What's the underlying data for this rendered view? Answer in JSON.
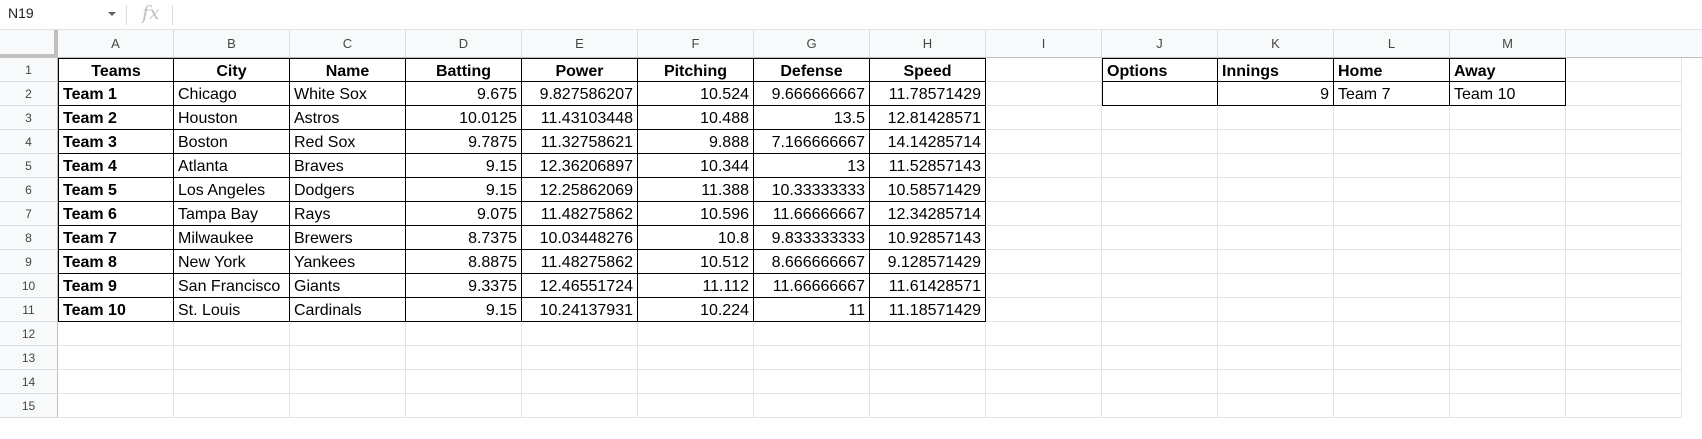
{
  "formula_bar": {
    "name_box": "N19",
    "fx_label": "fx",
    "formula": ""
  },
  "columns": [
    "A",
    "B",
    "C",
    "D",
    "E",
    "F",
    "G",
    "H",
    "I",
    "J",
    "K",
    "L",
    "M"
  ],
  "rows": [
    "1",
    "2",
    "3",
    "4",
    "5",
    "6",
    "7",
    "8",
    "9",
    "10",
    "11",
    "12",
    "13",
    "14",
    "15"
  ],
  "teams_table": {
    "headers": [
      "Teams",
      "City",
      "Name",
      "Batting",
      "Power",
      "Pitching",
      "Defense",
      "Speed"
    ],
    "data": [
      [
        "Team 1",
        "Chicago",
        "White Sox",
        "9.675",
        "9.827586207",
        "10.524",
        "9.666666667",
        "11.78571429"
      ],
      [
        "Team 2",
        "Houston",
        "Astros",
        "10.0125",
        "11.43103448",
        "10.488",
        "13.5",
        "12.81428571"
      ],
      [
        "Team 3",
        "Boston",
        "Red Sox",
        "9.7875",
        "11.32758621",
        "9.888",
        "7.166666667",
        "14.14285714"
      ],
      [
        "Team 4",
        "Atlanta",
        "Braves",
        "9.15",
        "12.36206897",
        "10.344",
        "13",
        "11.52857143"
      ],
      [
        "Team 5",
        "Los Angeles",
        "Dodgers",
        "9.15",
        "12.25862069",
        "11.388",
        "10.33333333",
        "10.58571429"
      ],
      [
        "Team 6",
        "Tampa Bay",
        "Rays",
        "9.075",
        "11.48275862",
        "10.596",
        "11.66666667",
        "12.34285714"
      ],
      [
        "Team 7",
        "Milwaukee",
        "Brewers",
        "8.7375",
        "10.03448276",
        "10.8",
        "9.833333333",
        "10.92857143"
      ],
      [
        "Team 8",
        "New York",
        "Yankees",
        "8.8875",
        "11.48275862",
        "10.512",
        "8.666666667",
        "9.128571429"
      ],
      [
        "Team 9",
        "San Francisco",
        "Giants",
        "9.3375",
        "12.46551724",
        "11.112",
        "11.66666667",
        "11.61428571"
      ],
      [
        "Team 10",
        "St. Louis",
        "Cardinals",
        "9.15",
        "10.24137931",
        "10.224",
        "11",
        "11.18571429"
      ]
    ]
  },
  "options_table": {
    "headers": [
      "Options",
      "Innings",
      "Home",
      "Away"
    ],
    "data": [
      "",
      "9",
      "Team 7",
      "Team 10"
    ]
  }
}
